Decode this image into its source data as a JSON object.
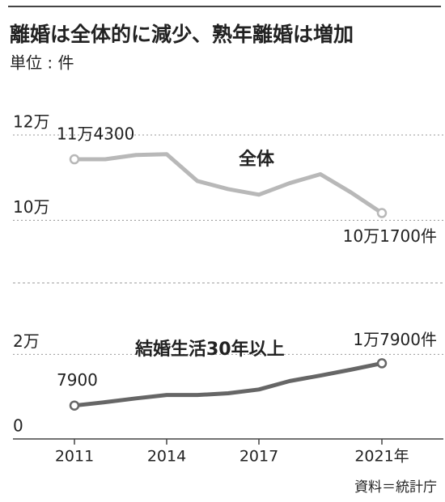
{
  "title": "離婚は全体的に減少、熟年離婚は増加",
  "unit_label": "単位 : 件",
  "source": "資料＝統計庁",
  "chart_data": [
    {
      "type": "line",
      "x": [
        2011,
        2012,
        2013,
        2014,
        2015,
        2016,
        2017,
        2018,
        2019,
        2020,
        2021
      ],
      "xlim": [
        2009,
        2023
      ],
      "ylim": [
        91000,
        127000
      ],
      "yticks": [
        {
          "value": 100000,
          "label": "10万"
        },
        {
          "value": 120000,
          "label": "12万"
        }
      ],
      "grid": true,
      "series": [
        {
          "name": "全体",
          "color": "#b8b8b8",
          "values": [
            114300,
            114300,
            115300,
            115500,
            109200,
            107300,
            106000,
            108700,
            110800,
            106500,
            101700
          ],
          "value_labels": [
            "11万4300",
            null,
            null,
            null,
            null,
            null,
            null,
            null,
            null,
            null,
            "10万1700件"
          ]
        }
      ]
    },
    {
      "type": "line",
      "x": [
        2011,
        2012,
        2013,
        2014,
        2015,
        2016,
        2017,
        2018,
        2019,
        2020,
        2021
      ],
      "xlim": [
        2009,
        2023
      ],
      "xticks": [
        2011,
        2014,
        2017,
        {
          "value": 2021,
          "label": "2021年"
        }
      ],
      "ylim": [
        0,
        35000
      ],
      "yticks": [
        0,
        {
          "value": 20000,
          "label": "2万"
        }
      ],
      "grid": true,
      "series": [
        {
          "name": "結婚生活30年以上",
          "color": "#666666",
          "name_color": "#a8283c",
          "values": [
            7900,
            8700,
            9600,
            10400,
            10400,
            10800,
            11700,
            13700,
            15000,
            16400,
            17900
          ],
          "value_labels": [
            "7900",
            null,
            null,
            null,
            null,
            null,
            null,
            null,
            null,
            null,
            "1万7900件"
          ]
        }
      ]
    }
  ]
}
